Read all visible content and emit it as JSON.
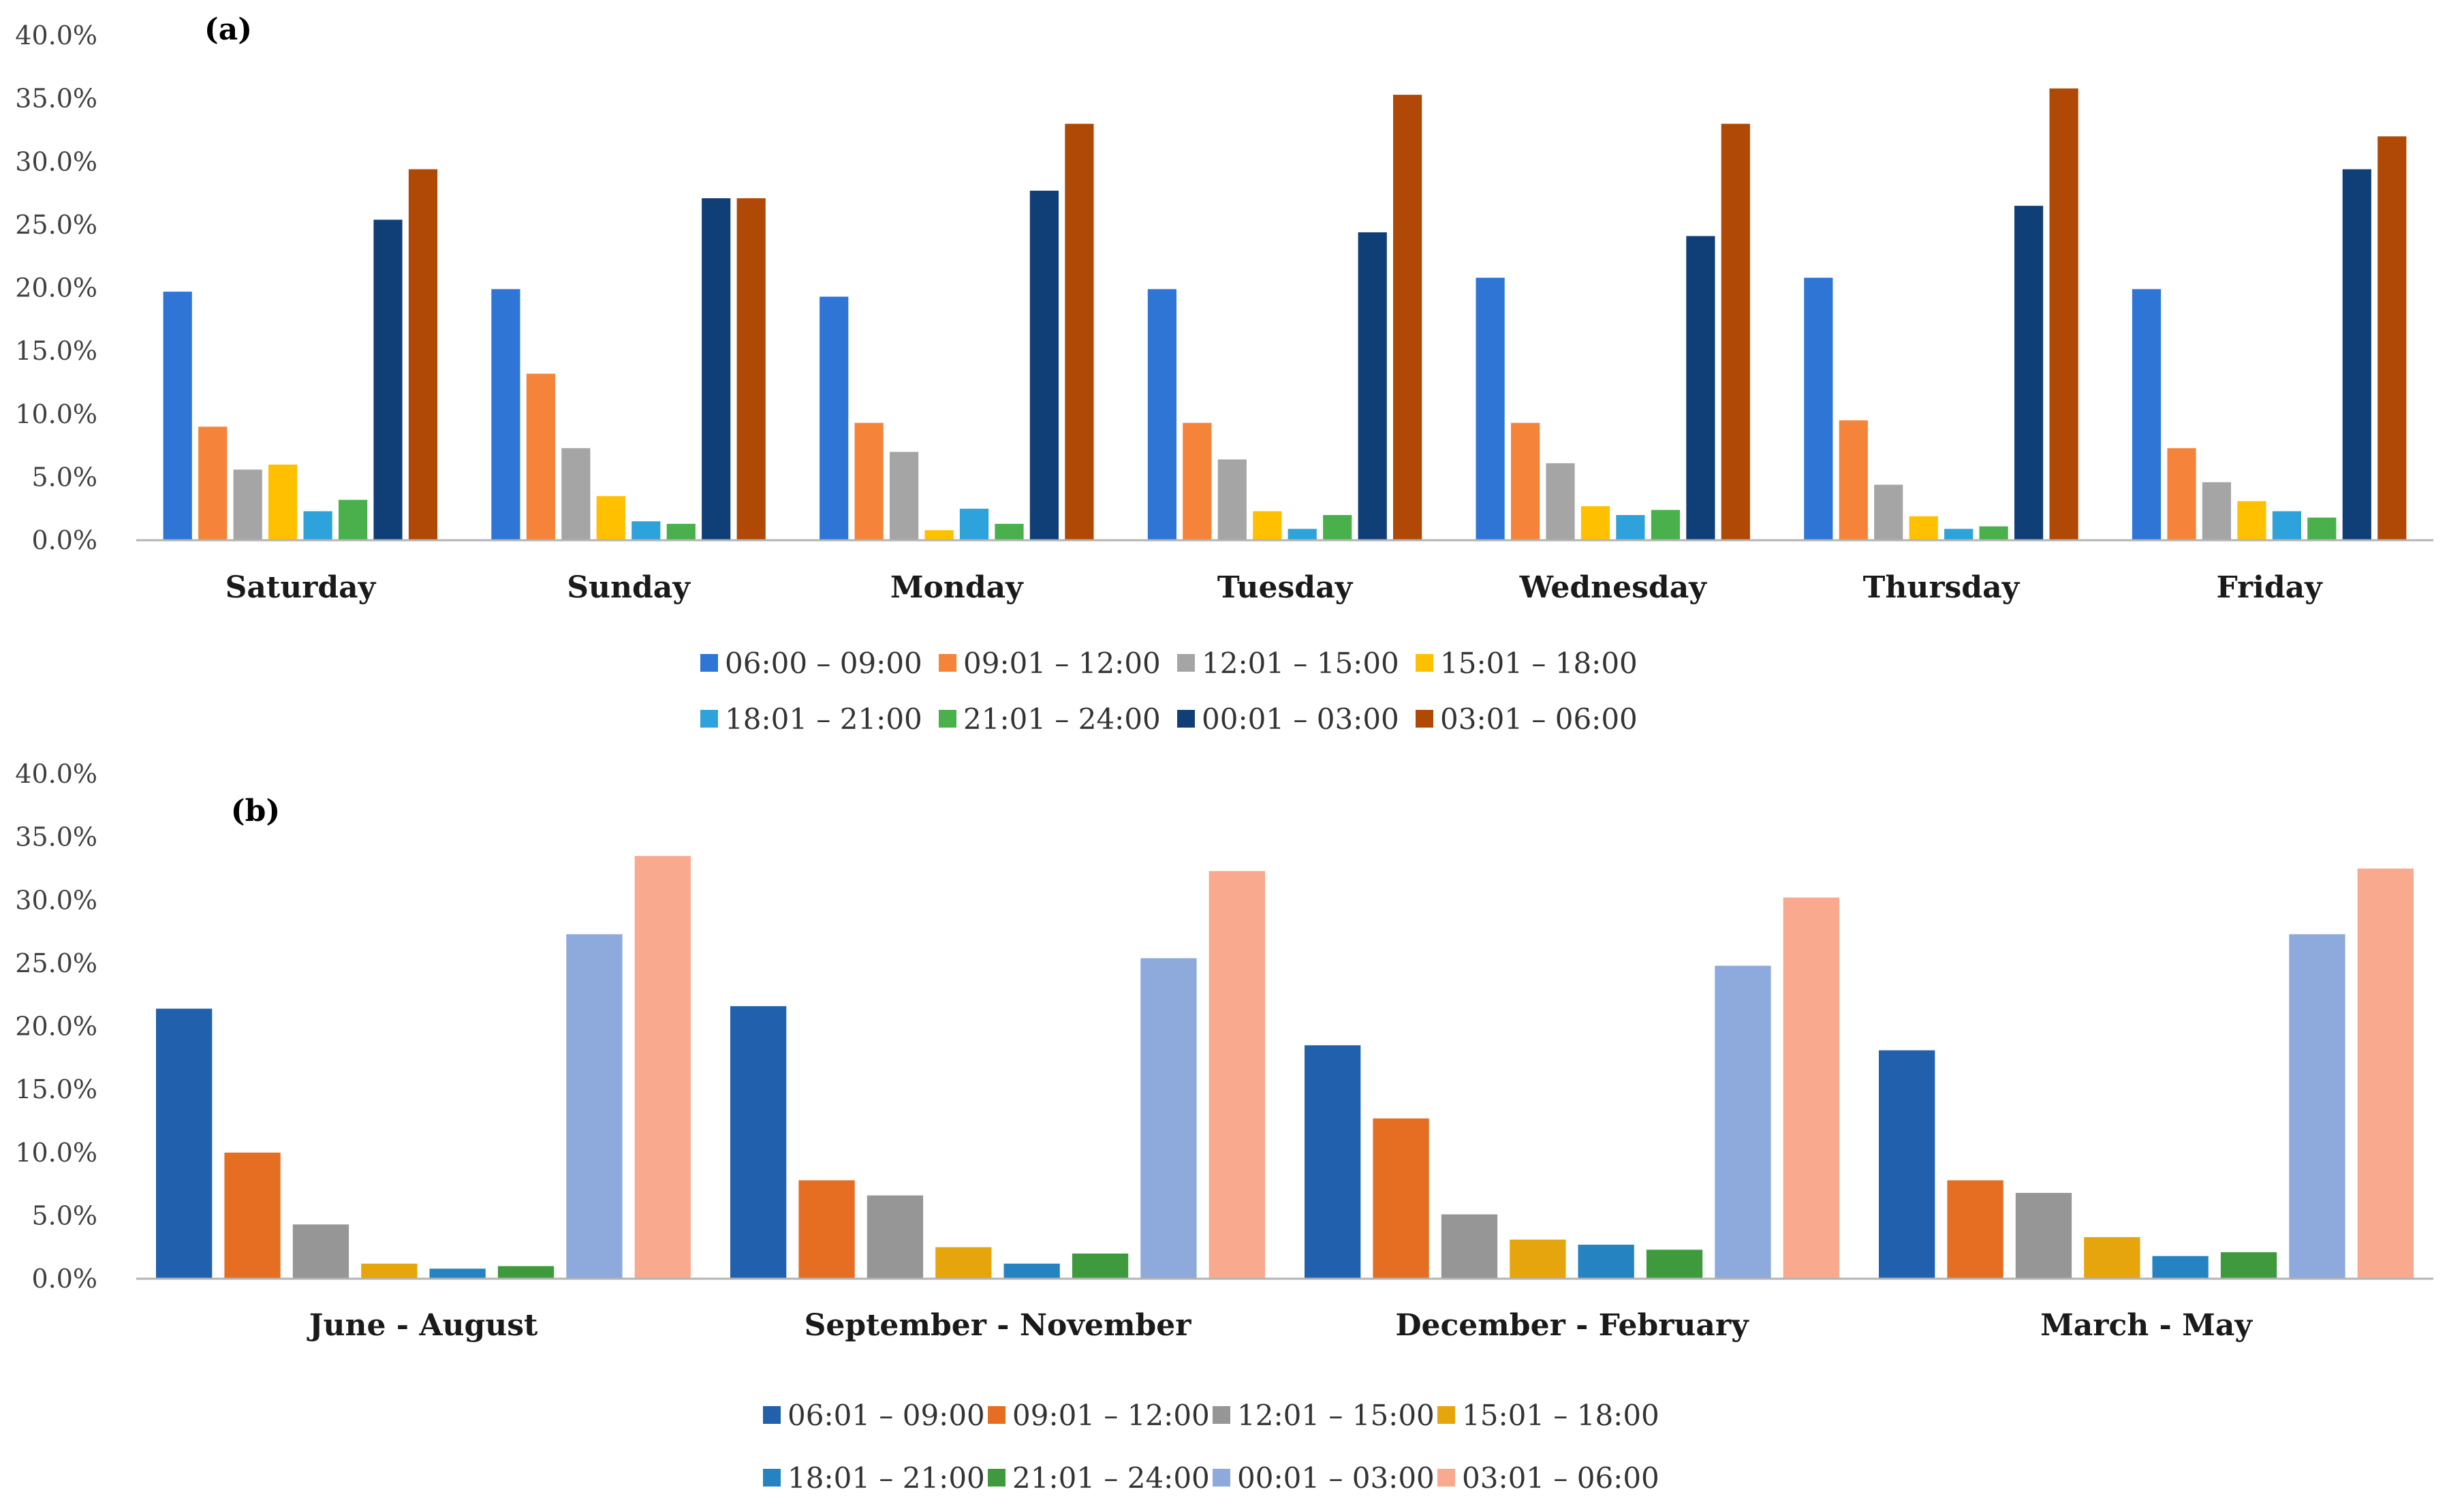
{
  "chart_data": [
    {
      "type": "bar",
      "panel_label": "(a)",
      "categories": [
        "Saturday",
        "Sunday",
        "Monday",
        "Tuesday",
        "Wednesday",
        "Thursday",
        "Friday"
      ],
      "ylim": [
        0,
        40
      ],
      "yticks": [
        "0.0%",
        "5.0%",
        "10.0%",
        "15.0%",
        "20.0%",
        "25.0%",
        "30.0%",
        "35.0%",
        "40.0%"
      ],
      "grid": false,
      "legend_position": "bottom",
      "series": [
        {
          "name": "06:00 – 09:00",
          "color": "#2E75D6",
          "values": [
            19.7,
            19.9,
            19.3,
            19.9,
            20.8,
            20.8,
            19.9
          ]
        },
        {
          "name": "09:01 – 12:00",
          "color": "#F5843A",
          "values": [
            9.0,
            13.2,
            9.3,
            9.3,
            9.3,
            9.5,
            7.3
          ]
        },
        {
          "name": "12:01 – 15:00",
          "color": "#A5A5A5",
          "values": [
            5.6,
            7.3,
            7.0,
            6.4,
            6.1,
            4.4,
            4.6
          ]
        },
        {
          "name": "15:01 – 18:00",
          "color": "#FFC000",
          "values": [
            6.0,
            3.5,
            0.8,
            2.3,
            2.7,
            1.9,
            3.1
          ]
        },
        {
          "name": "18:01 – 21:00",
          "color": "#2EA2DB",
          "values": [
            2.3,
            1.5,
            2.5,
            0.9,
            2.0,
            0.9,
            2.3
          ]
        },
        {
          "name": "21:01 – 24:00",
          "color": "#49B04C",
          "values": [
            3.2,
            1.3,
            1.3,
            2.0,
            2.4,
            1.1,
            1.8
          ]
        },
        {
          "name": "00:01 – 03:00",
          "color": "#103F78",
          "values": [
            25.4,
            27.1,
            27.7,
            24.4,
            24.1,
            26.5,
            29.4
          ]
        },
        {
          "name": "03:01 – 06:00",
          "color": "#B04806",
          "values": [
            29.4,
            27.1,
            33.0,
            35.3,
            33.0,
            35.8,
            32.0
          ]
        }
      ]
    },
    {
      "type": "bar",
      "panel_label": "(b)",
      "categories": [
        "June - August",
        "September - November",
        "December - February",
        "March - May"
      ],
      "ylim": [
        0,
        40
      ],
      "yticks": [
        "0.0%",
        "5.0%",
        "10.0%",
        "15.0%",
        "20.0%",
        "25.0%",
        "30.0%",
        "35.0%",
        "40.0%"
      ],
      "grid": false,
      "legend_position": "bottom",
      "series": [
        {
          "name": "06:01 – 09:00",
          "color": "#2060AC",
          "values": [
            21.4,
            21.6,
            18.5,
            18.1
          ]
        },
        {
          "name": "09:01 – 12:00",
          "color": "#E56E22",
          "values": [
            10.0,
            7.8,
            12.7,
            7.8
          ]
        },
        {
          "name": "12:01 – 15:00",
          "color": "#969696",
          "values": [
            4.3,
            6.6,
            5.1,
            6.8
          ]
        },
        {
          "name": "15:01 – 18:00",
          "color": "#E6A50C",
          "values": [
            1.2,
            2.5,
            3.1,
            3.3
          ]
        },
        {
          "name": "18:01 – 21:00",
          "color": "#2683C1",
          "values": [
            0.8,
            1.2,
            2.7,
            1.8
          ]
        },
        {
          "name": "21:01 – 24:00",
          "color": "#3F9A3E",
          "values": [
            1.0,
            2.0,
            2.3,
            2.1
          ]
        },
        {
          "name": "00:01 – 03:00",
          "color": "#8EA9DB",
          "values": [
            27.3,
            25.4,
            24.8,
            27.3
          ]
        },
        {
          "name": "03:01 – 06:00",
          "color": "#F8A98E",
          "values": [
            33.5,
            32.3,
            30.2,
            32.5
          ]
        }
      ]
    }
  ]
}
